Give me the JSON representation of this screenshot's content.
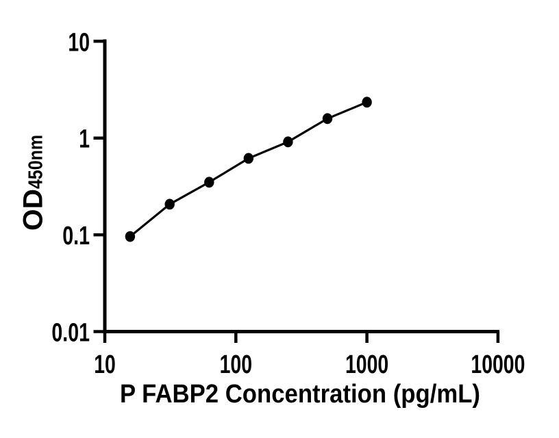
{
  "figure": {
    "type": "scientific-plot",
    "background_color": "#ffffff",
    "colors": {
      "axis": "#000000",
      "curve_line": "#000000",
      "marker_fill": "#000000",
      "text": "#000000"
    }
  },
  "chart_data": {
    "type": "line",
    "title": "",
    "xlabel": "P FABP2 Concentration (pg/mL)",
    "ylabel": "OD450nm",
    "ylabel_main": "OD",
    "ylabel_sub": "450nm",
    "xscale": "log10",
    "yscale": "log10",
    "xlim": [
      10,
      10000
    ],
    "ylim": [
      0.01,
      10
    ],
    "x_tick_values": [
      10,
      100,
      1000,
      10000
    ],
    "x_tick_labels": [
      "10",
      "100",
      "1000",
      "10000"
    ],
    "y_tick_values": [
      0.01,
      0.1,
      1,
      10
    ],
    "y_tick_labels": [
      "0.01",
      "0.1",
      "1",
      "10"
    ],
    "grid": false,
    "legend": false,
    "marker": "filled-circle",
    "x": [
      15.6,
      31.25,
      62.5,
      125,
      250,
      500,
      1000
    ],
    "y": [
      0.096,
      0.207,
      0.349,
      0.617,
      0.913,
      1.589,
      2.349
    ]
  }
}
